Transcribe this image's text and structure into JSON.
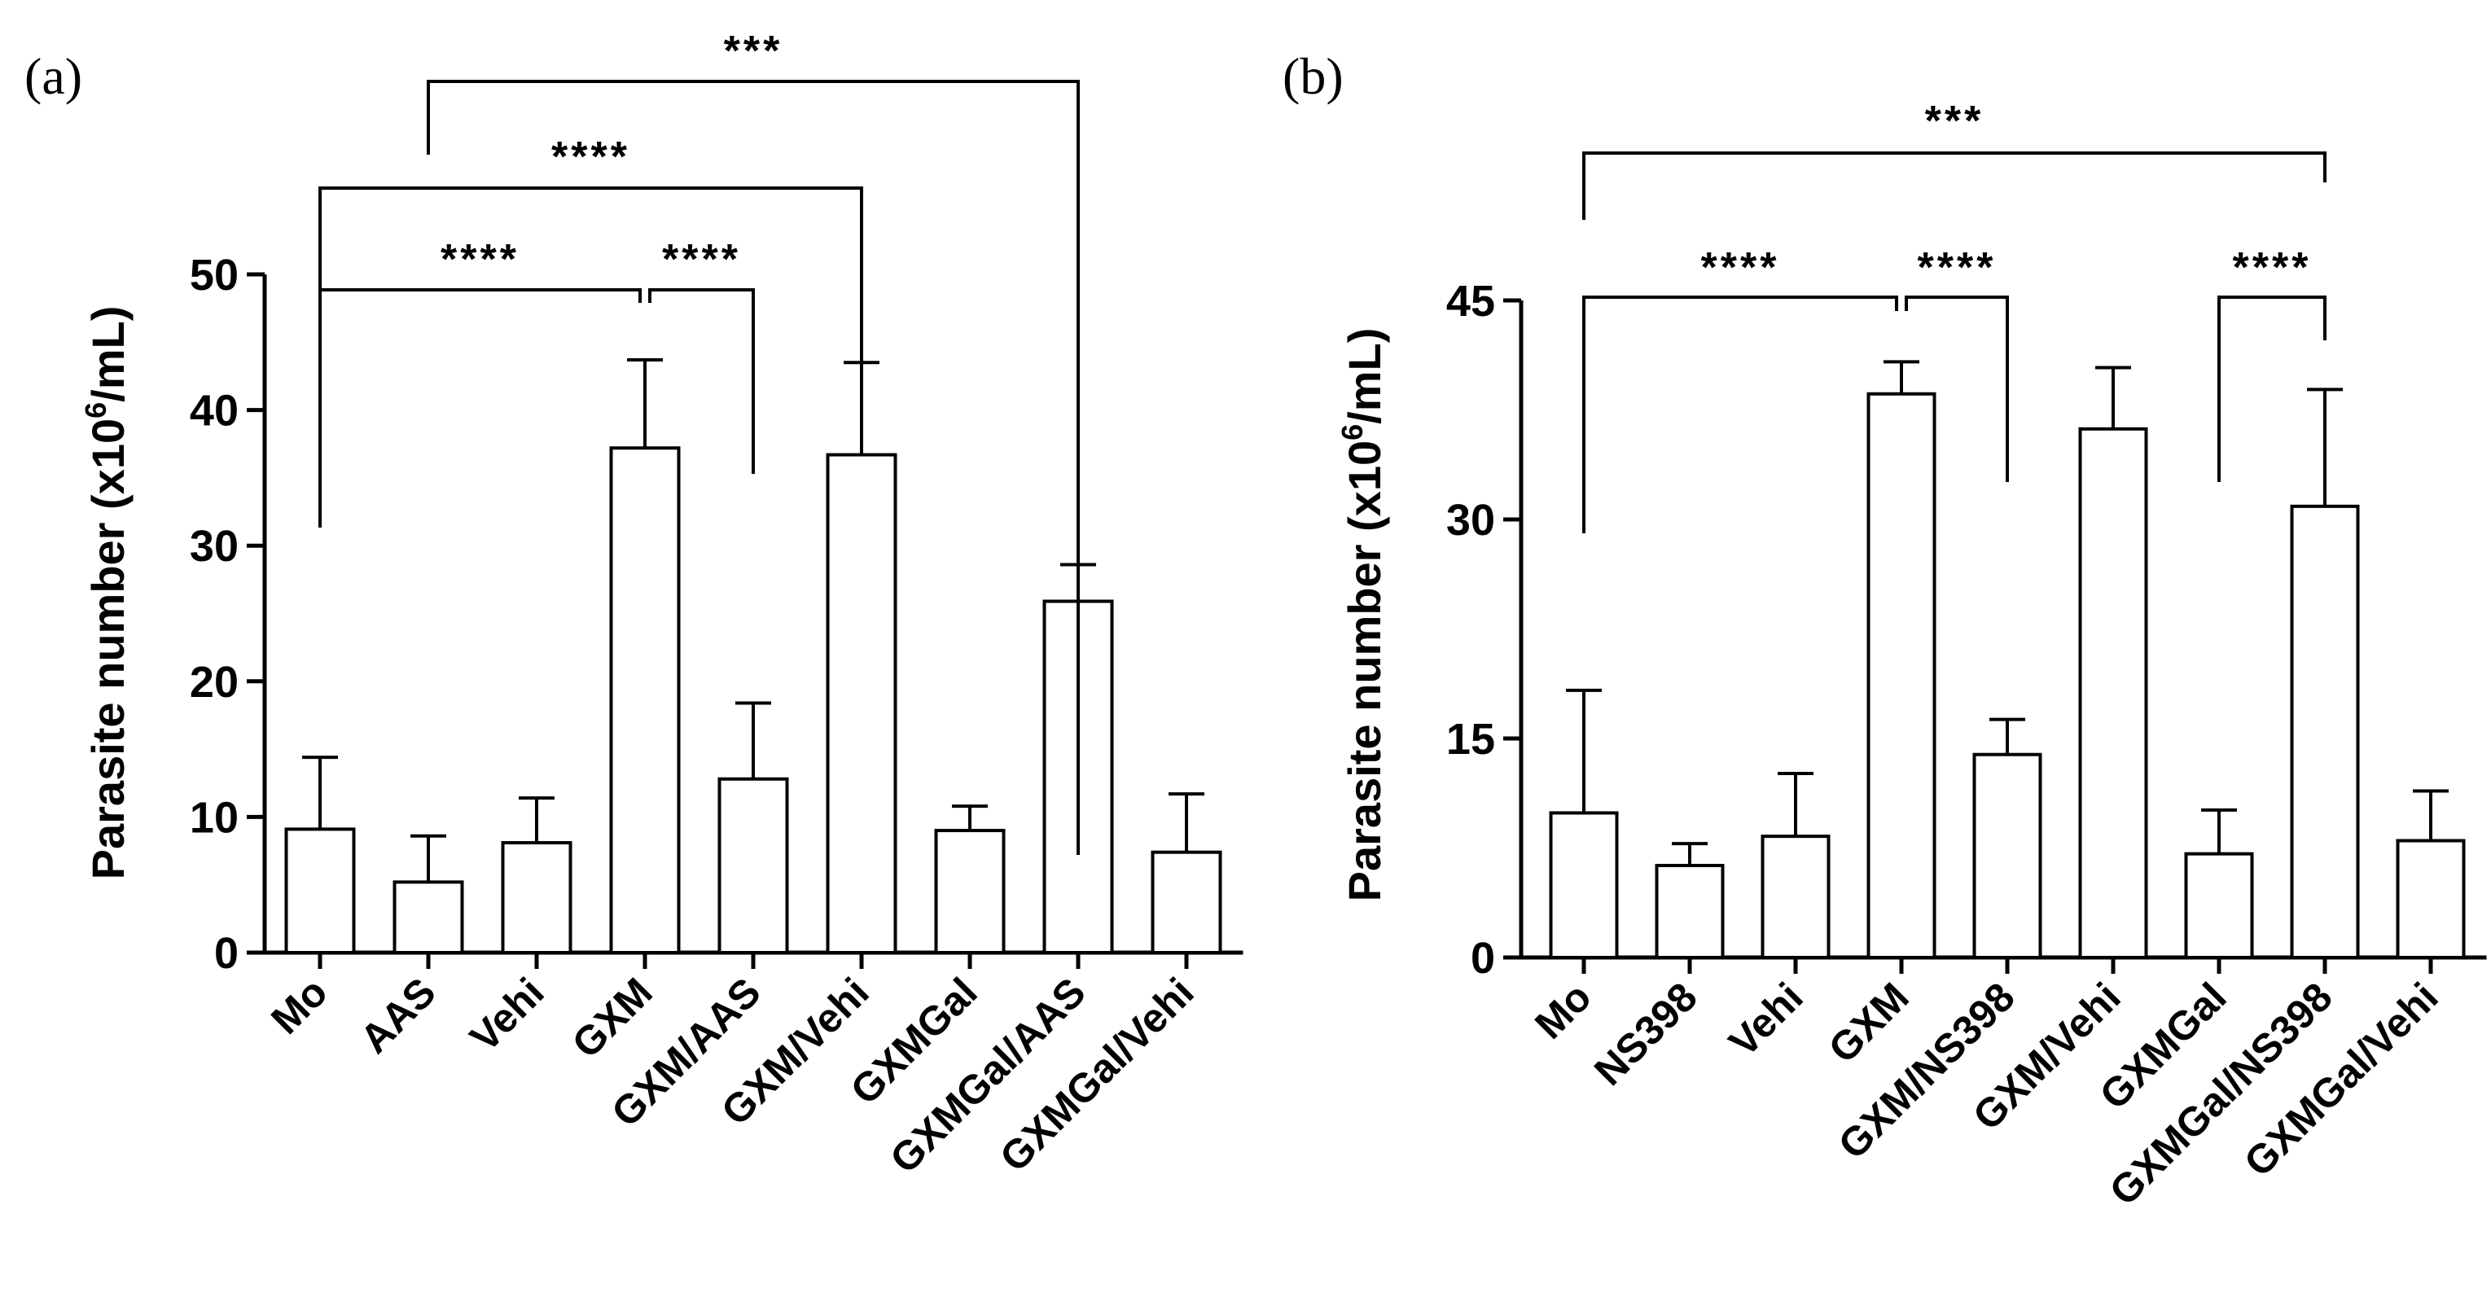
{
  "chart_data": [
    {
      "type": "bar",
      "panel_label": "(a)",
      "ylabel": "Parasite number (x10",
      "ylabel_sup": "6",
      "ylabel_tail": "/mL)",
      "ylim": [
        0,
        50
      ],
      "yticks": [
        0,
        10,
        20,
        30,
        40,
        50
      ],
      "categories": [
        "Mo",
        "AAS",
        "Vehi",
        "GXM",
        "GXM/AAS",
        "GXM/Vehi",
        "GXMGal",
        "GXMGal/AAS",
        "GXMGal/Vehi"
      ],
      "values": [
        9.1,
        5.2,
        8.1,
        37.2,
        12.8,
        36.7,
        9.0,
        25.9,
        7.4
      ],
      "errors": [
        5.3,
        3.4,
        3.3,
        6.5,
        5.6,
        6.8,
        1.8,
        2.7,
        4.3
      ],
      "comparisons": [
        {
          "from": "GXM",
          "to": "GXM/AAS",
          "label": "****"
        },
        {
          "from": "Mo",
          "to": "GXM",
          "label": "****"
        },
        {
          "from": "Mo",
          "to": "GXM/Vehi",
          "label": "****"
        },
        {
          "from": "AAS",
          "to": "GXMGal/AAS",
          "label": "***"
        }
      ]
    },
    {
      "type": "bar",
      "panel_label": "(b)",
      "ylabel": "Parasite number (x10",
      "ylabel_sup": "6",
      "ylabel_tail": "/mL)",
      "ylim": [
        0,
        45
      ],
      "yticks": [
        0,
        15,
        30,
        45
      ],
      "categories": [
        "Mo",
        "NS398",
        "Vehi",
        "GXM",
        "GXM/NS398",
        "GXM/Vehi",
        "GXMGal",
        "GXMGal/NS398",
        "GXMGal/Vehi"
      ],
      "values": [
        9.9,
        6.3,
        8.3,
        38.6,
        13.9,
        36.2,
        7.1,
        30.9,
        8.0
      ],
      "errors": [
        8.4,
        1.5,
        4.3,
        2.2,
        2.4,
        4.2,
        3.0,
        8.0,
        3.4
      ],
      "comparisons": [
        {
          "from": "GXM",
          "to": "GXM/NS398",
          "label": "****"
        },
        {
          "from": "Mo",
          "to": "GXM",
          "label": "****"
        },
        {
          "from": "GXMGal",
          "to": "GXMGal/NS398",
          "label": "****"
        },
        {
          "from": "Mo",
          "to": "GXMGal/NS398",
          "label": "***"
        }
      ]
    }
  ]
}
